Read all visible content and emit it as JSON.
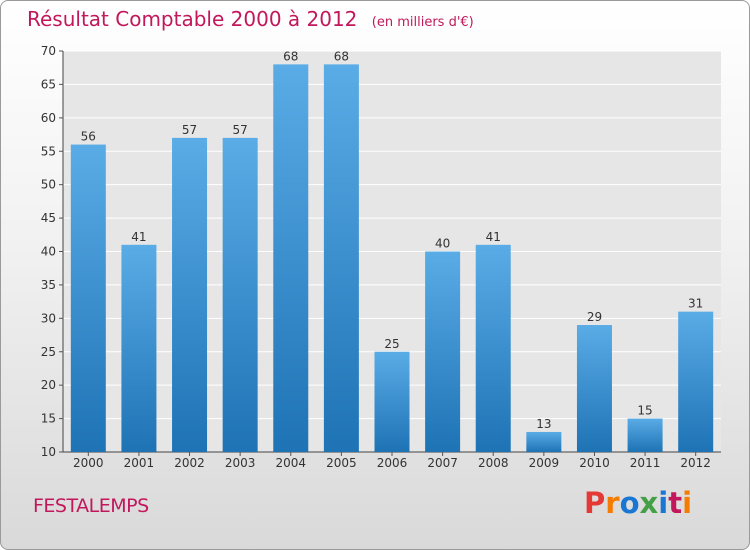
{
  "header": {
    "title": "Résultat Comptable 2000 à 2012",
    "subtitle": "(en milliers d'€)"
  },
  "footer": {
    "commune": "FESTALEMPS",
    "logo_text": "Proxiti"
  },
  "colors": {
    "title": "#c2185b",
    "bar_top": "#5aace6",
    "bar_bottom": "#1e73b5",
    "logo_letters": [
      "#e53935",
      "#f57c00",
      "#1976d2",
      "#43a047",
      "#1976d2",
      "#c2185b",
      "#f57c00"
    ]
  },
  "chart_data": {
    "type": "bar",
    "title": "Résultat Comptable 2000 à 2012",
    "subtitle": "(en milliers d'€)",
    "categories": [
      "2000",
      "2001",
      "2002",
      "2003",
      "2004",
      "2005",
      "2006",
      "2007",
      "2008",
      "2009",
      "2010",
      "2011",
      "2012"
    ],
    "values": [
      56,
      41,
      57,
      57,
      68,
      68,
      25,
      40,
      41,
      13,
      29,
      15,
      31
    ],
    "data_labels": [
      "56",
      "41",
      "57",
      "57",
      "68",
      "68",
      "25",
      "40",
      "41",
      "13",
      "29",
      "15",
      "31"
    ],
    "ylim": [
      10,
      70
    ],
    "yticks": [
      10,
      15,
      20,
      25,
      30,
      35,
      40,
      45,
      50,
      55,
      60,
      65,
      70
    ],
    "grid": true,
    "legend": "none"
  }
}
